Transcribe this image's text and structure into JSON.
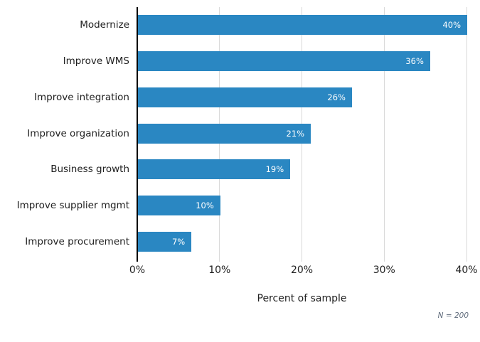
{
  "chart_data": {
    "type": "bar",
    "orientation": "horizontal",
    "title": "",
    "categories": [
      "Modernize",
      "Improve WMS",
      "Improve integration",
      "Improve organization",
      "Business growth",
      "Improve supplier mgmt",
      "Improve procurement"
    ],
    "values": [
      40,
      36,
      26,
      21,
      19,
      10,
      7
    ],
    "value_labels": [
      "40%",
      "36%",
      "26%",
      "21%",
      "19%",
      "10%",
      "7%"
    ],
    "bar_lengths_pct": [
      40,
      35.5,
      26,
      21,
      18.5,
      10,
      6.5
    ],
    "xlabel": "Percent of sample",
    "ylabel": "",
    "x_ticks": [
      {
        "value": 0,
        "label": "0%"
      },
      {
        "value": 10,
        "label": "10%"
      },
      {
        "value": 20,
        "label": "20%"
      },
      {
        "value": 30,
        "label": "30%"
      },
      {
        "value": 40,
        "label": "40%"
      }
    ],
    "xlim": [
      0,
      40
    ],
    "grid": true,
    "legend": false,
    "note": "N = 200",
    "colors": {
      "bar": "#2a87c2",
      "gridline": "#d9d9d9",
      "axis_line": "#000000",
      "text": "#212121",
      "bar_value_text": "#ffffff",
      "note_text": "#5f6b7b",
      "background": "#ffffff"
    }
  }
}
